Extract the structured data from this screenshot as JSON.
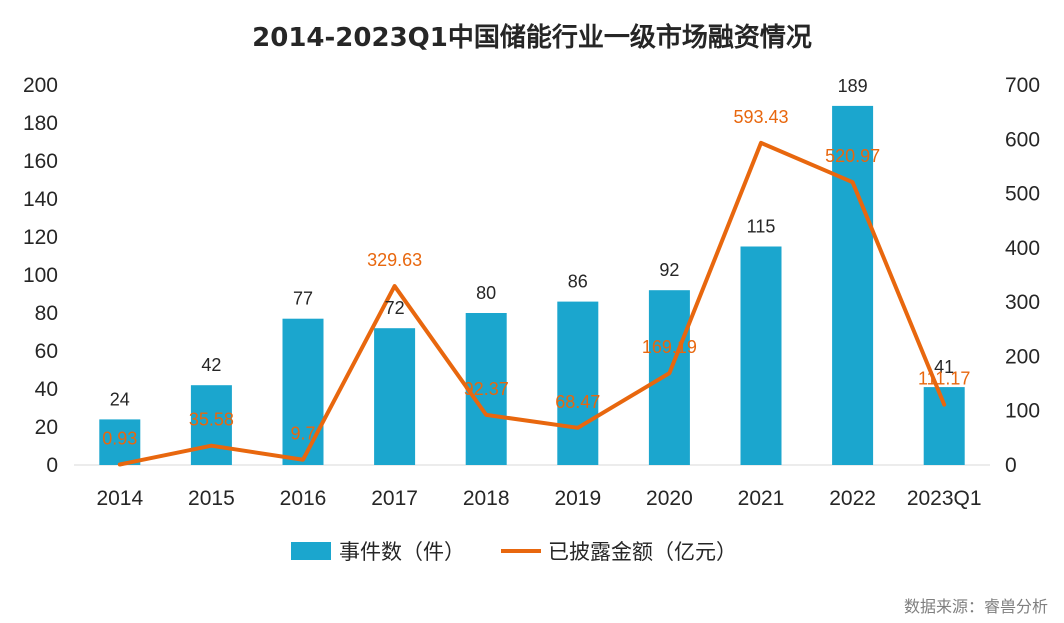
{
  "chart_data": {
    "type": "bar",
    "title": "2014-2023Q1中国储能行业一级市场融资情况",
    "categories": [
      "2014",
      "2015",
      "2016",
      "2017",
      "2018",
      "2019",
      "2020",
      "2021",
      "2022",
      "2023Q1"
    ],
    "series": [
      {
        "name": "事件数（件）",
        "type": "bar",
        "axis": "left",
        "color": "#1ba6ce",
        "values": [
          24,
          42,
          77,
          72,
          80,
          86,
          92,
          115,
          189,
          41
        ],
        "labels": [
          "24",
          "42",
          "77",
          "72",
          "80",
          "86",
          "92",
          "115",
          "189",
          "41"
        ]
      },
      {
        "name": "已披露金额（亿元）",
        "type": "line",
        "axis": "right",
        "color": "#e8670e",
        "values": [
          0.93,
          35.58,
          9.7,
          329.63,
          92.37,
          68.47,
          169.19,
          593.43,
          520.97,
          111.17
        ],
        "labels": [
          "0.93",
          "35.58",
          "9.7",
          "329.63",
          "92.37",
          "68.47",
          "169.19",
          "593.43",
          "520.97",
          "111.17"
        ]
      }
    ],
    "y_left": {
      "min": 0,
      "max": 200,
      "ticks": [
        "0",
        "20",
        "40",
        "60",
        "80",
        "100",
        "120",
        "140",
        "160",
        "180",
        "200"
      ]
    },
    "y_right": {
      "min": 0,
      "max": 700,
      "ticks": [
        "0",
        "100",
        "200",
        "300",
        "400",
        "500",
        "600",
        "700"
      ]
    },
    "grid": false,
    "legend_position": "bottom",
    "source": "数据来源：睿兽分析"
  }
}
